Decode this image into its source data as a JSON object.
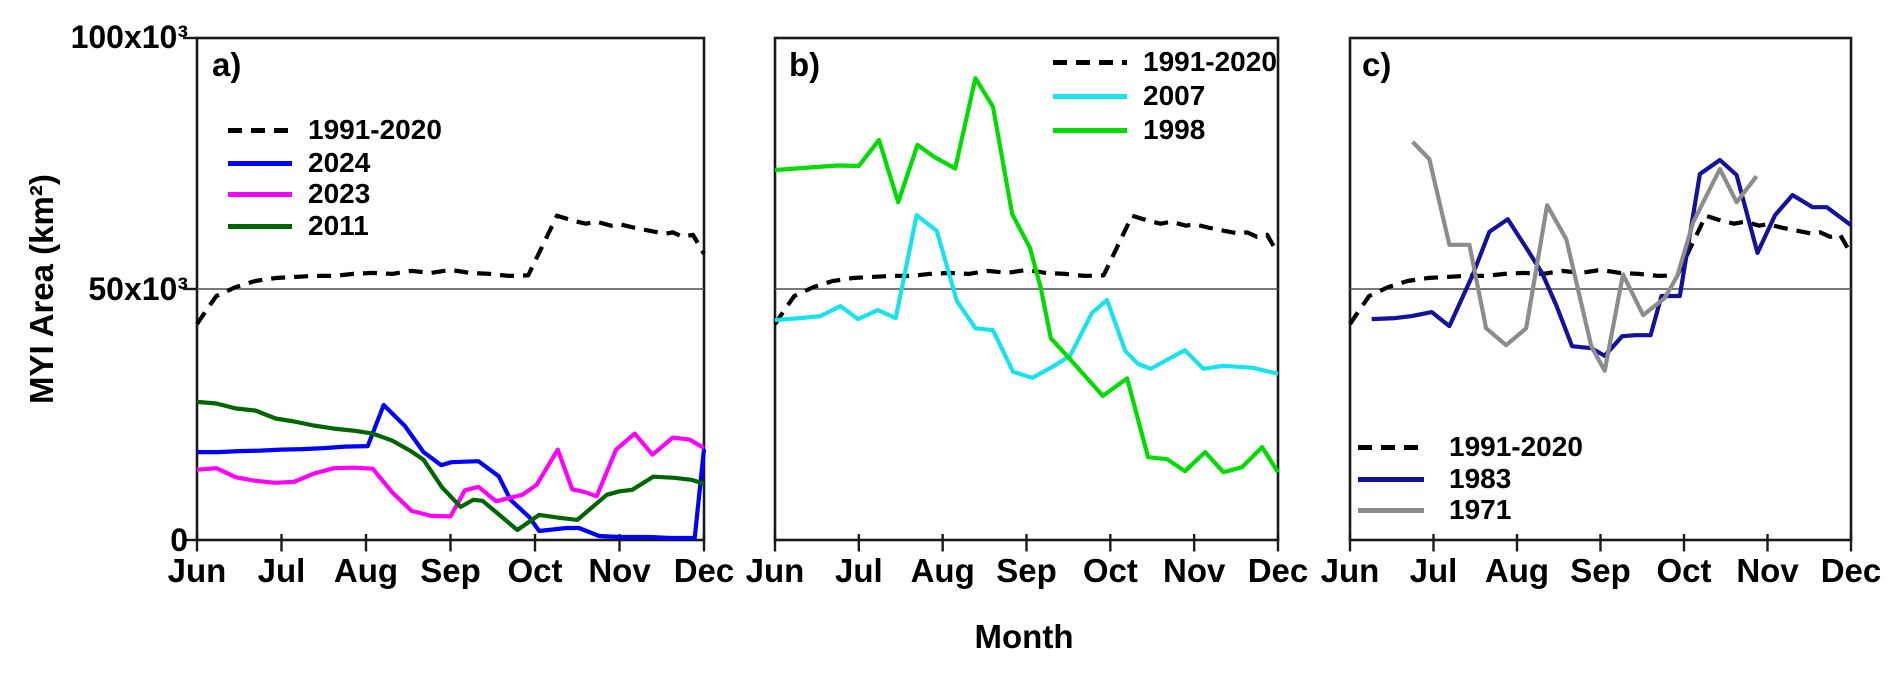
{
  "y_axis": {
    "title": "MYI Area (km²)",
    "ticks": [
      "0",
      "50x10³",
      "100x10³"
    ],
    "range_km2": [
      0,
      100000
    ],
    "reference_line_km2": 50000
  },
  "x_axis": {
    "title": "Month",
    "months": [
      "Jun",
      "Jul",
      "Aug",
      "Sep",
      "Oct",
      "Nov",
      "Dec"
    ]
  },
  "chart_data": [
    {
      "panel": "a)",
      "type": "line",
      "legend_position": "top-left",
      "x_unit": "month index (0=Jun ... 6=Dec)",
      "y_unit": "10³ km²",
      "series": [
        {
          "name": "1991-2020",
          "color": "#000000",
          "style": "dashed",
          "x": [
            0,
            0.12,
            0.23,
            0.46,
            0.69,
            0.93,
            1.15,
            1.38,
            1.62,
            1.85,
            2.08,
            2.31,
            2.54,
            2.77,
            3.0,
            3.23,
            3.46,
            3.69,
            3.92,
            4.26,
            4.45,
            4.6,
            4.73,
            4.9,
            5.0,
            5.18,
            5.36,
            5.54,
            5.63,
            5.75,
            5.87,
            6.0
          ],
          "y": [
            43,
            46,
            48.6,
            50.4,
            51.6,
            52.2,
            52.4,
            52.6,
            52.6,
            53,
            53.2,
            53,
            53.6,
            53.2,
            53.8,
            53.2,
            53,
            52.6,
            52.7,
            64.6,
            63.6,
            63,
            63.4,
            62.6,
            62.9,
            62.2,
            61.6,
            61,
            61.3,
            60.4,
            60.8,
            57
          ]
        },
        {
          "name": "2024",
          "color": "#0000ff",
          "style": "solid",
          "x": [
            0,
            0.25,
            0.5,
            0.75,
            1,
            1.25,
            1.5,
            1.75,
            2.02,
            2.21,
            2.46,
            2.68,
            2.89,
            3.01,
            3.33,
            3.57,
            3.71,
            3.93,
            4.05,
            4.37,
            4.52,
            4.76,
            5,
            5.36,
            5.6,
            5.89,
            6
          ],
          "y": [
            17.5,
            17.5,
            17.7,
            17.8,
            18,
            18.1,
            18.3,
            18.6,
            18.7,
            26.9,
            22.7,
            17.5,
            14.9,
            15.5,
            15.7,
            12.7,
            8,
            4.6,
            1.8,
            2.4,
            2.4,
            0.8,
            0.6,
            0.6,
            0.4,
            0.4,
            18.1
          ]
        },
        {
          "name": "2023",
          "color": "#ff00ff",
          "style": "solid",
          "x": [
            0,
            0.23,
            0.46,
            0.69,
            0.93,
            1.15,
            1.38,
            1.62,
            1.85,
            2.08,
            2.31,
            2.54,
            2.77,
            3,
            3.17,
            3.33,
            3.54,
            3.85,
            4.02,
            4.27,
            4.44,
            4.58,
            4.73,
            4.96,
            5.18,
            5.39,
            5.63,
            5.83,
            6
          ],
          "y": [
            14,
            14.3,
            12.5,
            11.8,
            11.4,
            11.6,
            13.2,
            14.3,
            14.4,
            14.2,
            9.5,
            5.8,
            4.8,
            4.7,
            9.9,
            10.6,
            7.7,
            9,
            11,
            18,
            10.1,
            9.6,
            8.7,
            18,
            21.2,
            17,
            20.4,
            20,
            18.3
          ]
        },
        {
          "name": "2011",
          "color": "#006400",
          "style": "solid",
          "x": [
            0,
            0.23,
            0.46,
            0.69,
            0.93,
            1.15,
            1.38,
            1.62,
            1.85,
            2.08,
            2.31,
            2.54,
            2.68,
            2.9,
            3.12,
            3.27,
            3.38,
            3.79,
            4.05,
            4.3,
            4.5,
            4.85,
            5,
            5.15,
            5.4,
            5.65,
            5.85,
            6
          ],
          "y": [
            27.5,
            27.2,
            26.2,
            25.8,
            24.2,
            23.6,
            22.8,
            22.2,
            21.8,
            21.2,
            19.8,
            17.6,
            16,
            10.5,
            6.6,
            8,
            7.8,
            2,
            5,
            4.4,
            4,
            9,
            9.7,
            10,
            12.6,
            12.4,
            12,
            11.2
          ]
        }
      ]
    },
    {
      "panel": "b)",
      "type": "line",
      "legend_position": "top-right",
      "x_unit": "month index (0=Jun ... 6=Dec)",
      "y_unit": "10³ km²",
      "series": [
        {
          "name": "1991-2020",
          "color": "#000000",
          "style": "dashed",
          "x": [
            0,
            0.12,
            0.23,
            0.46,
            0.69,
            0.93,
            1.15,
            1.38,
            1.62,
            1.85,
            2.08,
            2.31,
            2.54,
            2.77,
            3.0,
            3.23,
            3.46,
            3.69,
            3.92,
            4.26,
            4.45,
            4.6,
            4.73,
            4.9,
            5.0,
            5.18,
            5.36,
            5.54,
            5.63,
            5.75,
            5.87,
            6.0
          ],
          "y": [
            43,
            46,
            48.6,
            50.4,
            51.6,
            52.2,
            52.4,
            52.6,
            52.6,
            53,
            53.2,
            53,
            53.6,
            53.2,
            53.8,
            53.2,
            53,
            52.6,
            52.7,
            64.6,
            63.6,
            63,
            63.4,
            62.6,
            62.9,
            62.2,
            61.6,
            61,
            61.3,
            60.4,
            60.8,
            57
          ]
        },
        {
          "name": "2007",
          "color": "#17e2ee",
          "style": "solid",
          "x": [
            0,
            0.3,
            0.54,
            0.78,
            0.99,
            1.23,
            1.44,
            1.69,
            1.93,
            2.17,
            2.39,
            2.6,
            2.84,
            3.07,
            3.31,
            3.52,
            3.78,
            3.96,
            4.18,
            4.33,
            4.48,
            4.89,
            5.11,
            5.35,
            5.7,
            6
          ],
          "y": [
            43.8,
            44.2,
            44.6,
            46.6,
            44,
            45.8,
            44.2,
            64.7,
            61.6,
            47.6,
            42.2,
            41.8,
            33.5,
            32.3,
            34.5,
            36.7,
            45.2,
            47.8,
            37.6,
            35.1,
            34.1,
            37.8,
            34.1,
            34.7,
            34.3,
            33.1
          ]
        },
        {
          "name": "1998",
          "color": "#00dc00",
          "style": "solid",
          "x": [
            0,
            0.25,
            0.5,
            0.75,
            1,
            1.24,
            1.47,
            1.7,
            1.9,
            2.15,
            2.39,
            2.6,
            2.83,
            3.04,
            3.17,
            3.29,
            3.5,
            3.91,
            4.2,
            4.45,
            4.68,
            4.89,
            5.13,
            5.35,
            5.57,
            5.81,
            6
          ],
          "y": [
            73.7,
            74,
            74.3,
            74.6,
            74.5,
            79.7,
            67.3,
            78.7,
            76.3,
            74,
            92,
            86.3,
            64.9,
            58.2,
            50.2,
            40.2,
            36.4,
            28.7,
            32.2,
            16.5,
            16.1,
            13.7,
            17.5,
            13.5,
            14.5,
            18.5,
            13.5
          ]
        }
      ]
    },
    {
      "panel": "c)",
      "type": "line",
      "legend_position": "bottom-left",
      "x_unit": "month index (0=Jun ... 6=Dec)",
      "y_unit": "10³ km²",
      "series": [
        {
          "name": "1991-2020",
          "color": "#000000",
          "style": "dashed",
          "x": [
            0,
            0.12,
            0.23,
            0.46,
            0.69,
            0.93,
            1.15,
            1.38,
            1.62,
            1.85,
            2.08,
            2.31,
            2.54,
            2.77,
            3.0,
            3.23,
            3.46,
            3.69,
            3.92,
            4.26,
            4.45,
            4.6,
            4.73,
            4.9,
            5.0,
            5.18,
            5.36,
            5.54,
            5.63,
            5.75,
            5.87,
            6.0
          ],
          "y": [
            43,
            46,
            48.6,
            50.4,
            51.6,
            52.2,
            52.4,
            52.6,
            52.6,
            53,
            53.2,
            53,
            53.6,
            53.2,
            53.8,
            53.2,
            53,
            52.6,
            52.7,
            64.6,
            63.6,
            63,
            63.4,
            62.6,
            62.9,
            62.2,
            61.6,
            61,
            61.3,
            60.4,
            60.8,
            57
          ]
        },
        {
          "name": "1983",
          "color": "#12129a",
          "style": "solid",
          "x": [
            0.26,
            0.54,
            0.74,
            0.98,
            1.19,
            1.47,
            1.67,
            1.89,
            2.11,
            2.3,
            2.47,
            2.66,
            2.89,
            3.05,
            3.26,
            3.42,
            3.6,
            3.73,
            3.95,
            4.19,
            4.43,
            4.63,
            4.88,
            5.09,
            5.3,
            5.54,
            5.71,
            6
          ],
          "y": [
            44,
            44.2,
            44.6,
            45.4,
            42.6,
            52.8,
            61.4,
            63.9,
            58.2,
            53.2,
            46.8,
            38.6,
            38.2,
            36.7,
            40.6,
            40.8,
            40.8,
            48.6,
            48.6,
            72.9,
            75.7,
            72.7,
            57.2,
            64.7,
            68.7,
            66.3,
            66.3,
            62.7
          ]
        },
        {
          "name": "1971",
          "color": "#8c8c8c",
          "style": "solid",
          "x": [
            0.75,
            0.95,
            1.19,
            1.43,
            1.63,
            1.87,
            2.11,
            2.36,
            2.59,
            2.89,
            3.05,
            3.27,
            3.51,
            3.77,
            3.92,
            4.11,
            4.43,
            4.63,
            4.87
          ],
          "y": [
            79.3,
            75.9,
            58.8,
            58.8,
            42.2,
            38.8,
            42.2,
            66.7,
            59.9,
            38.6,
            33.7,
            52.9,
            44.8,
            48.2,
            52.6,
            63.3,
            73.9,
            67.3,
            72.5
          ]
        }
      ]
    }
  ]
}
